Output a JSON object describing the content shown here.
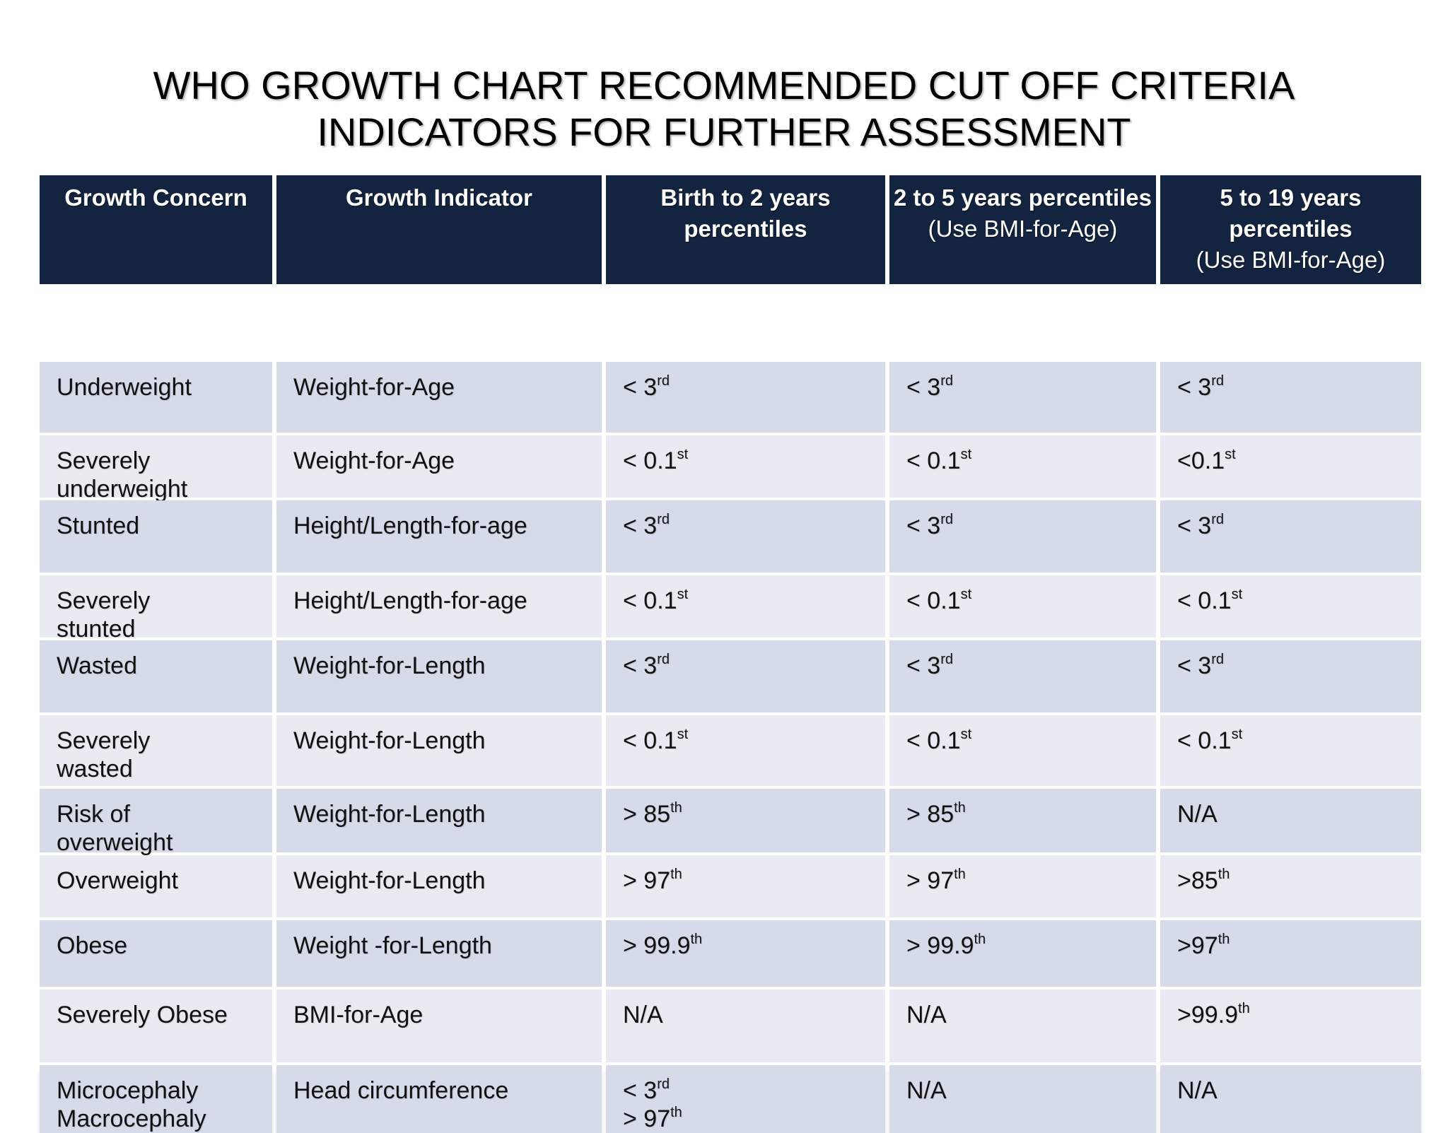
{
  "title": {
    "line1": "WHO GROWTH CHART RECOMMENDED CUT OFF CRITERIA",
    "line2": "INDICATORS FOR FURTHER ASSESSMENT"
  },
  "table": {
    "headers": [
      {
        "main": "Growth Concern",
        "sub": ""
      },
      {
        "main": "Growth Indicator",
        "sub": ""
      },
      {
        "main": "Birth to 2 years percentiles",
        "sub": ""
      },
      {
        "main": "2 to 5 years percentiles",
        "sub": "(Use BMI-for-Age)"
      },
      {
        "main": "5 to 19 years percentiles",
        "sub": "(Use BMI-for-Age)"
      }
    ],
    "rows": [
      {
        "concern": [
          "Underweight"
        ],
        "indicator": [
          "Weight-for-Age"
        ],
        "birth_to_2": [
          {
            "base": "< 3",
            "sup": "rd"
          }
        ],
        "two_to_5": [
          {
            "base": "< 3",
            "sup": "rd"
          }
        ],
        "five_to_19": [
          {
            "base": "< 3",
            "sup": "rd"
          }
        ]
      },
      {
        "concern": [
          "Severely",
          "underweight"
        ],
        "indicator": [
          "Weight-for-Age"
        ],
        "birth_to_2": [
          {
            "base": "< 0.1",
            "sup": "st"
          }
        ],
        "two_to_5": [
          {
            "base": "< 0.1",
            "sup": "st"
          }
        ],
        "five_to_19": [
          {
            "base": "<0.1",
            "sup": "st"
          }
        ]
      },
      {
        "concern": [
          "Stunted"
        ],
        "indicator": [
          "Height/Length-for-age"
        ],
        "birth_to_2": [
          {
            "base": "< 3",
            "sup": "rd"
          }
        ],
        "two_to_5": [
          {
            "base": "< 3",
            "sup": "rd"
          }
        ],
        "five_to_19": [
          {
            "base": "< 3",
            "sup": "rd"
          }
        ]
      },
      {
        "concern": [
          "Severely",
          "stunted"
        ],
        "indicator": [
          "Height/Length-for-age"
        ],
        "birth_to_2": [
          {
            "base": "< 0.1",
            "sup": "st"
          }
        ],
        "two_to_5": [
          {
            "base": "< 0.1",
            "sup": "st"
          }
        ],
        "five_to_19": [
          {
            "base": "< 0.1",
            "sup": "st"
          }
        ]
      },
      {
        "concern": [
          "Wasted"
        ],
        "indicator": [
          "Weight-for-Length"
        ],
        "birth_to_2": [
          {
            "base": "< 3",
            "sup": "rd"
          }
        ],
        "two_to_5": [
          {
            "base": "< 3",
            "sup": "rd"
          }
        ],
        "five_to_19": [
          {
            "base": "< 3",
            "sup": "rd"
          }
        ]
      },
      {
        "concern": [
          "Severely",
          "wasted"
        ],
        "indicator": [
          "Weight-for-Length"
        ],
        "birth_to_2": [
          {
            "base": "< 0.1",
            "sup": "st"
          }
        ],
        "two_to_5": [
          {
            "base": "< 0.1",
            "sup": "st"
          }
        ],
        "five_to_19": [
          {
            "base": "< 0.1",
            "sup": "st"
          }
        ]
      },
      {
        "concern": [
          "Risk of",
          "overweight"
        ],
        "indicator": [
          "Weight-for-Length"
        ],
        "birth_to_2": [
          {
            "base": "> 85",
            "sup": "th"
          }
        ],
        "two_to_5": [
          {
            "base": "> 85",
            "sup": "th"
          }
        ],
        "five_to_19": [
          {
            "base": "N/A",
            "sup": ""
          }
        ]
      },
      {
        "concern": [
          "Overweight"
        ],
        "indicator": [
          "Weight-for-Length"
        ],
        "birth_to_2": [
          {
            "base": "> 97",
            "sup": "th"
          }
        ],
        "two_to_5": [
          {
            "base": "> 97",
            "sup": "th"
          }
        ],
        "five_to_19": [
          {
            "base": ">85",
            "sup": "th"
          }
        ]
      },
      {
        "concern": [
          "Obese"
        ],
        "indicator": [
          "Weight -for-Length"
        ],
        "birth_to_2": [
          {
            "base": "> 99.9",
            "sup": "th"
          }
        ],
        "two_to_5": [
          {
            "base": "> 99.9",
            "sup": "th"
          }
        ],
        "five_to_19": [
          {
            "base": ">97",
            "sup": "th"
          }
        ]
      },
      {
        "concern": [
          "Severely Obese"
        ],
        "indicator": [
          "BMI-for-Age"
        ],
        "birth_to_2": [
          {
            "base": "N/A",
            "sup": ""
          }
        ],
        "two_to_5": [
          {
            "base": "N/A",
            "sup": ""
          }
        ],
        "five_to_19": [
          {
            "base": ">99.9",
            "sup": "th"
          }
        ]
      },
      {
        "concern": [
          "Microcephaly",
          "Macrocephaly"
        ],
        "indicator": [
          "Head circumference"
        ],
        "birth_to_2": [
          {
            "base": "< 3",
            "sup": "rd"
          },
          {
            "base": "> 97",
            "sup": "th"
          }
        ],
        "two_to_5": [
          {
            "base": "N/A",
            "sup": ""
          }
        ],
        "five_to_19": [
          {
            "base": "N/A",
            "sup": ""
          }
        ]
      }
    ]
  }
}
